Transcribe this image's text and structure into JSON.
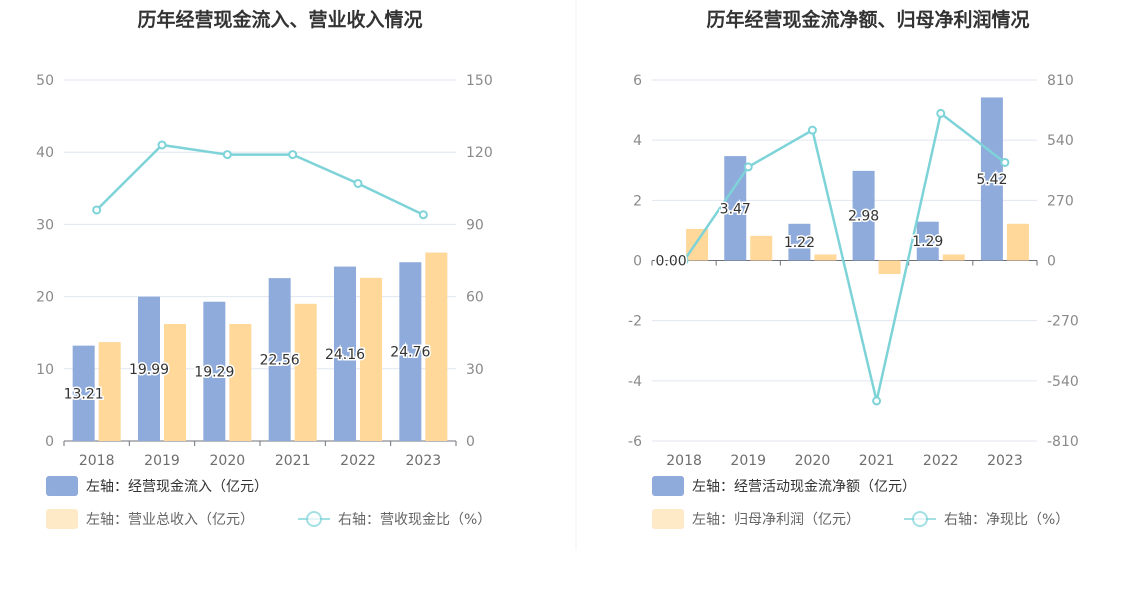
{
  "colors": {
    "bar1": "#8eabdb",
    "bar2": "#ffd89a",
    "line": "#7dd3d8",
    "grid": "#e0e6f1",
    "axis": "#6e7079"
  },
  "chart_data": [
    {
      "type": "bar",
      "title": "历年经营现金流入、营业收入情况",
      "categories": [
        "2018",
        "2019",
        "2020",
        "2021",
        "2022",
        "2023"
      ],
      "y_left": {
        "min": 0,
        "max": 50,
        "ticks": [
          "0",
          "10",
          "20",
          "30",
          "40",
          "50"
        ]
      },
      "y_right": {
        "min": 0,
        "max": 150,
        "ticks": [
          "0",
          "30",
          "60",
          "90",
          "120",
          "150"
        ]
      },
      "series": [
        {
          "name": "左轴：经营现金流入（亿元）",
          "type": "bar",
          "axis": "left",
          "values": [
            13.21,
            19.99,
            19.29,
            22.56,
            24.16,
            24.76
          ],
          "labels": [
            "13.21",
            "19.99",
            "19.29",
            "22.56",
            "24.16",
            "24.76"
          ]
        },
        {
          "name": "左轴：营业总收入（亿元）",
          "type": "bar",
          "axis": "left",
          "values": [
            13.7,
            16.2,
            16.2,
            19.0,
            22.6,
            26.1
          ]
        },
        {
          "name": "右轴：营收现金比（%）",
          "type": "line",
          "axis": "right",
          "values": [
            96,
            123,
            119,
            119,
            107,
            94
          ]
        }
      ]
    },
    {
      "type": "bar",
      "title": "历年经营现金流净额、归母净利润情况",
      "categories": [
        "2018",
        "2019",
        "2020",
        "2021",
        "2022",
        "2023"
      ],
      "y_left": {
        "min": -6,
        "max": 6,
        "ticks": [
          "-6",
          "-4",
          "-2",
          "0",
          "2",
          "4",
          "6"
        ]
      },
      "y_right": {
        "min": -810,
        "max": 810,
        "ticks": [
          "-810",
          "-540",
          "-270",
          "0",
          "270",
          "540",
          "810"
        ]
      },
      "series": [
        {
          "name": "左轴：经营活动现金流净额（亿元）",
          "type": "bar",
          "axis": "left",
          "values": [
            0.0,
            3.47,
            1.22,
            2.98,
            1.29,
            5.42
          ],
          "labels": [
            "0.00",
            "3.47",
            "1.22",
            "2.98",
            "1.29",
            "5.42"
          ]
        },
        {
          "name": "左轴：归母净利润（亿元）",
          "type": "bar",
          "axis": "left",
          "values": [
            1.05,
            0.82,
            0.2,
            -0.45,
            0.2,
            1.22
          ]
        },
        {
          "name": "右轴：净现比（%）",
          "type": "line",
          "axis": "right",
          "values": [
            0,
            420,
            585,
            -630,
            660,
            440
          ]
        }
      ]
    }
  ]
}
